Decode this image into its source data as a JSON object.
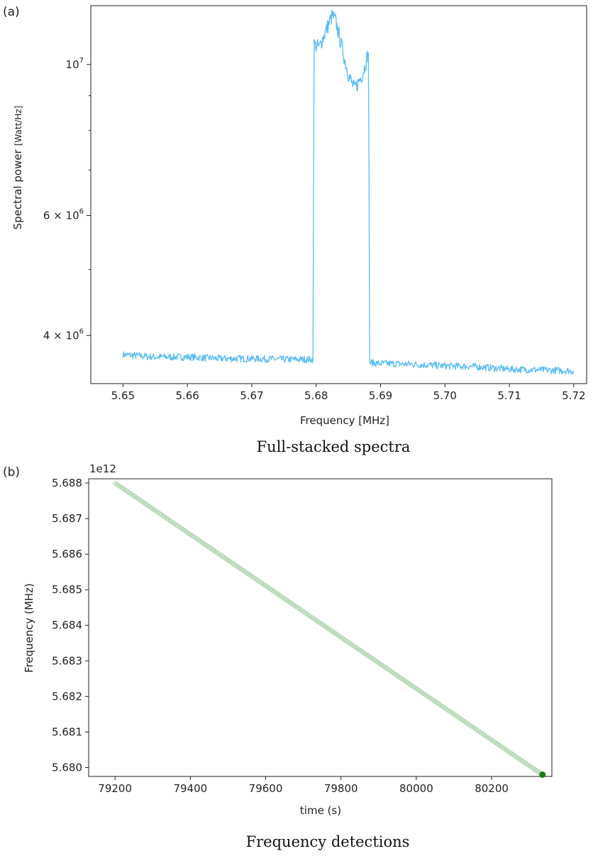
{
  "chart_data": [
    {
      "panel_label": "(a)",
      "caption": "Full-stacked spectra",
      "type": "line",
      "xlabel": "Frequency [MHz]",
      "ylabel": "Spectral power",
      "ylabel_unit": "[Watt/Hz]",
      "xlim": [
        5.645,
        5.722
      ],
      "ylim": [
        3400000,
        12200000
      ],
      "y_scale": "log",
      "x_ticks": [
        "5.65",
        "5.66",
        "5.67",
        "5.68",
        "5.69",
        "5.70",
        "5.71",
        "5.72"
      ],
      "x_tick_values": [
        5.65,
        5.66,
        5.67,
        5.68,
        5.69,
        5.7,
        5.71,
        5.72
      ],
      "y_tick_labels": [
        {
          "value": 10000000,
          "base": "10",
          "exp": "7"
        },
        {
          "value": 6000000,
          "base": "6 × 10",
          "exp": "6"
        },
        {
          "value": 4000000,
          "base": "4 × 10",
          "exp": "6"
        }
      ],
      "y_minor_ticks": [
        5000000,
        7000000,
        8000000,
        9000000
      ],
      "grid": false,
      "series_color": "#5bbcf5",
      "series": [
        {
          "x": [
            5.65,
            5.655,
            5.66,
            5.665,
            5.67,
            5.675,
            5.6795,
            5.6797,
            5.6805,
            5.681,
            5.6815,
            5.682,
            5.6825,
            5.683,
            5.6835,
            5.684,
            5.6845,
            5.685,
            5.6855,
            5.686,
            5.6865,
            5.687,
            5.6875,
            5.6881,
            5.6883,
            5.69,
            5.695,
            5.7,
            5.705,
            5.71,
            5.715,
            5.72
          ],
          "y": [
            3750000,
            3720000,
            3720000,
            3700000,
            3700000,
            3690000,
            3690000,
            10700000,
            10600000,
            10900000,
            11200000,
            11500000,
            11800000,
            11600000,
            11100000,
            10600000,
            10100000,
            9700000,
            9400000,
            9200000,
            9400000,
            9600000,
            9900000,
            10400000,
            3650000,
            3640000,
            3630000,
            3610000,
            3600000,
            3570000,
            3560000,
            3550000
          ]
        }
      ],
      "noise_amplitude": 0.012
    },
    {
      "panel_label": "(b)",
      "caption": "Frequency detections",
      "type": "scatter",
      "xlabel": "time (s)",
      "ylabel": "Frequency (MHz)",
      "offset_text": "1e12",
      "xlim": [
        79130,
        80360
      ],
      "ylim": [
        5.67975,
        5.68812
      ],
      "x_ticks": [
        "79200",
        "79400",
        "79600",
        "79800",
        "80000",
        "80200"
      ],
      "x_tick_values": [
        79200,
        79400,
        79600,
        79800,
        80000,
        80200
      ],
      "y_ticks": [
        "5.680",
        "5.681",
        "5.682",
        "5.683",
        "5.684",
        "5.685",
        "5.686",
        "5.687",
        "5.688"
      ],
      "y_tick_values": [
        5.68,
        5.681,
        5.682,
        5.683,
        5.684,
        5.685,
        5.686,
        5.687,
        5.688
      ],
      "grid": false,
      "point_color": "#2e8b2e",
      "detections": {
        "x_start": 79200,
        "x_end": 80335,
        "y_start": 5.688,
        "y_end": 5.6798,
        "count": 240
      },
      "last_point": {
        "x": 80335,
        "y": 5.6798
      }
    }
  ]
}
